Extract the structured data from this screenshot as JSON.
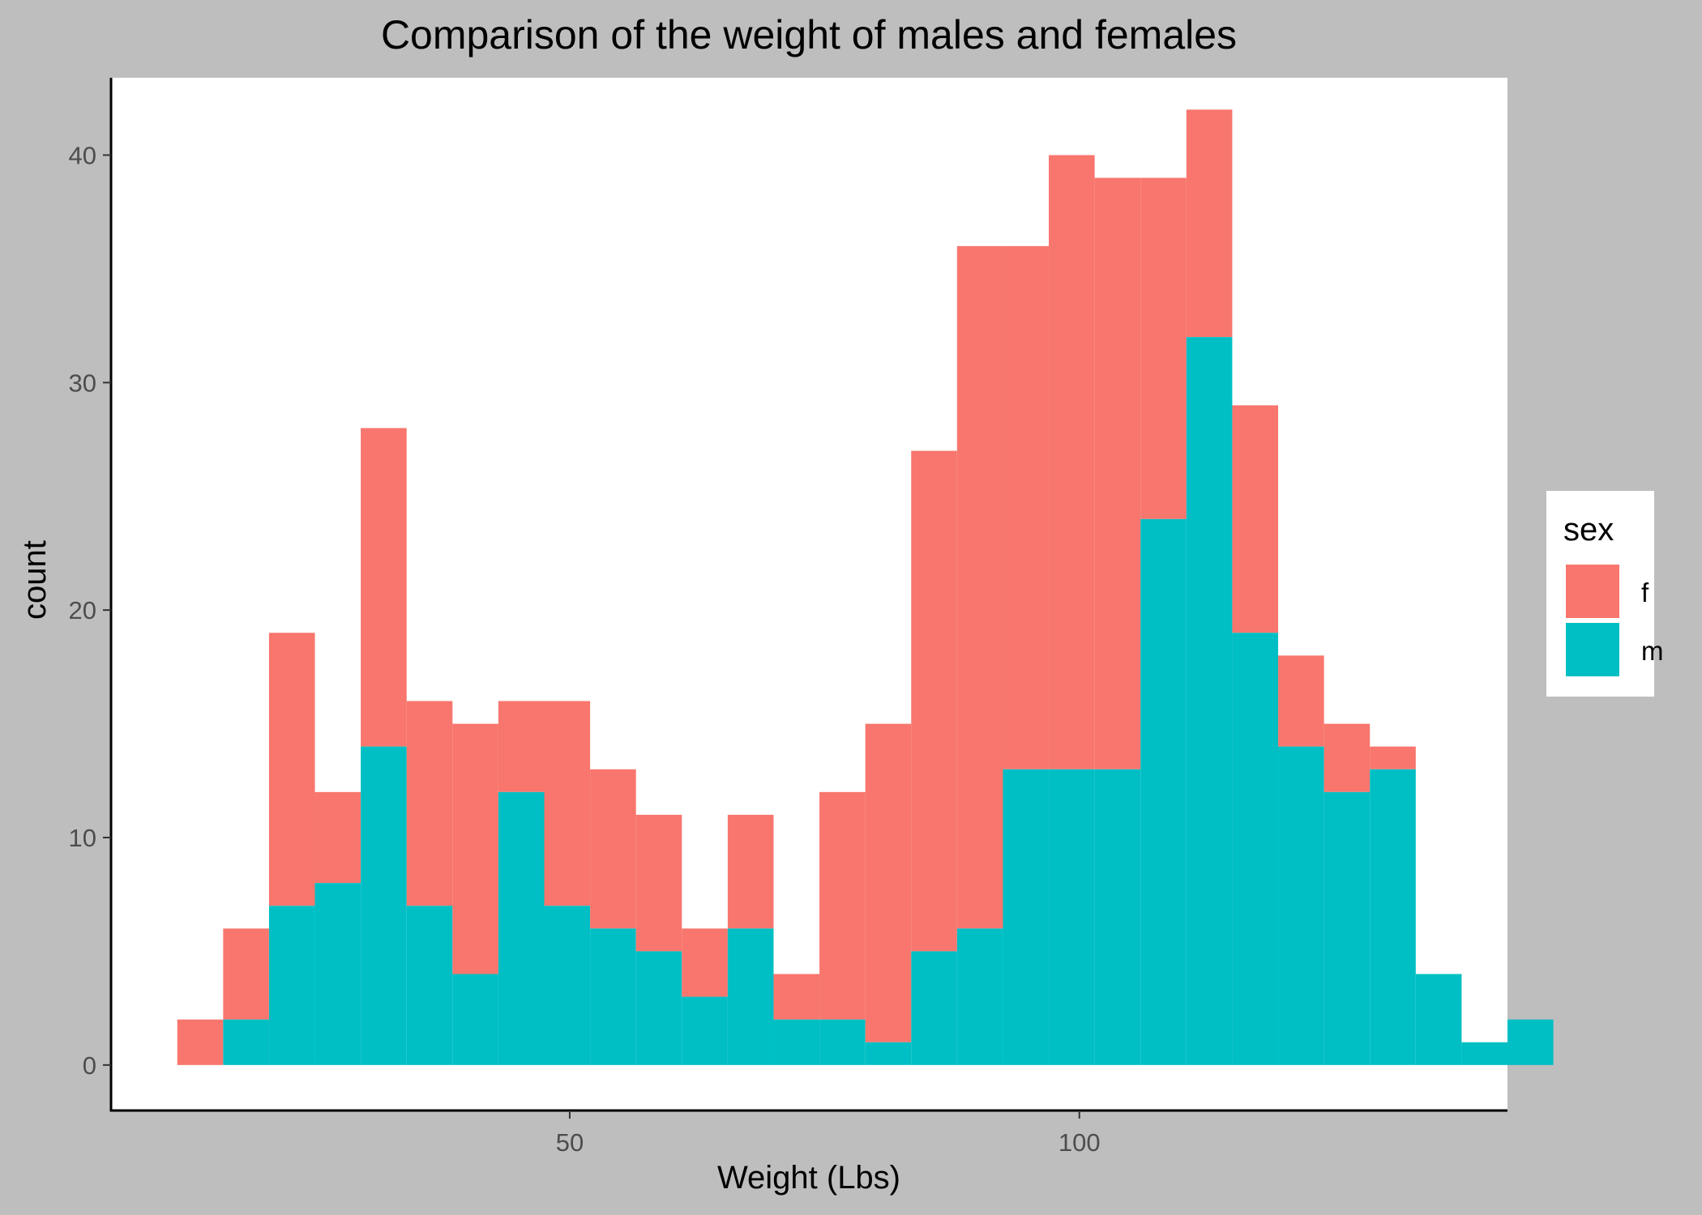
{
  "chart_data": {
    "type": "bar",
    "stacked": true,
    "title": "Comparison of the weight of males and females",
    "xlabel": "Weight (Lbs)",
    "ylabel": "count",
    "xlim": [
      5,
      142
    ],
    "ylim": [
      -2,
      43.4
    ],
    "xticks": [
      50,
      100
    ],
    "yticks": [
      0,
      10,
      20,
      30,
      40
    ],
    "grid": false,
    "legend": {
      "title": "sex",
      "position": "right"
    },
    "bin_width": 4.5,
    "bin_start": 11.5,
    "colors": {
      "f": "#F8766D",
      "m": "#00BFC4"
    },
    "series": [
      {
        "name": "f",
        "totals": [
          2,
          6,
          19,
          12,
          28,
          16,
          15,
          16,
          16,
          13,
          11,
          6,
          11,
          4,
          12,
          15,
          27,
          36,
          36,
          40,
          39,
          39,
          42,
          29,
          18,
          15,
          14,
          4,
          1,
          2
        ]
      },
      {
        "name": "m",
        "values": [
          0,
          2,
          7,
          8,
          14,
          7,
          4,
          12,
          7,
          6,
          5,
          3,
          6,
          2,
          2,
          1,
          5,
          6,
          13,
          13,
          13,
          24,
          32,
          19,
          14,
          12,
          13,
          4,
          1,
          2
        ]
      }
    ]
  }
}
